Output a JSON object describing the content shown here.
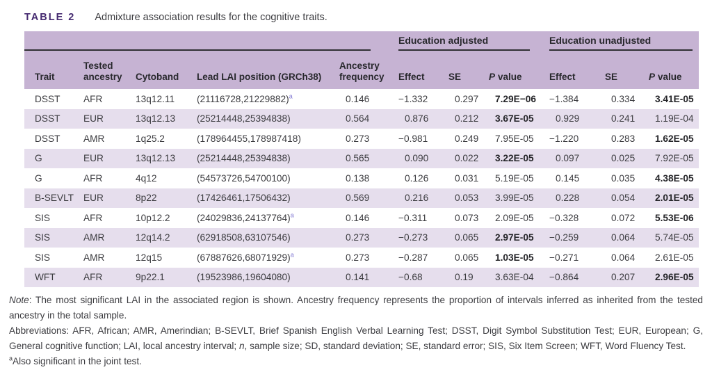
{
  "colors": {
    "header_bg": "#c6b3d3",
    "row_shade_bg": "#e6deed",
    "title_color": "#452a70",
    "text_color": "#3c3c40",
    "header_text_color": "#28282d",
    "rule_color": "#2f2f33",
    "footnote_mark_color": "#7f76d2"
  },
  "title": {
    "label": "TABLE 2",
    "caption": "Admixture association results for the cognitive traits."
  },
  "table": {
    "groups": {
      "adjusted": "Education adjusted",
      "unadjusted": "Education unadjusted"
    },
    "headers": {
      "trait": "Trait",
      "tested": [
        "Tested",
        "ancestry"
      ],
      "cytoband": "Cytoband",
      "position": "Lead LAI position (GRCh38)",
      "frequency": [
        "Ancestry",
        "frequency"
      ],
      "effect": "Effect",
      "se": "SE",
      "p_prefix": "P",
      "p_word": "value"
    },
    "rows": [
      {
        "trait": "DSST",
        "ancestry": "AFR",
        "cytoband": "13q12.11",
        "position": "(21116728,21229882)",
        "footnote": true,
        "frequency": "0.146",
        "adj_effect": "−1.332",
        "adj_se": "0.297",
        "adj_p": "7.29E−06",
        "adj_p_bold": true,
        "unadj_effect": "−1.384",
        "unadj_se": "0.334",
        "unadj_p": "3.41E-05",
        "unadj_p_bold": true
      },
      {
        "trait": "DSST",
        "ancestry": "EUR",
        "cytoband": "13q12.13",
        "position": "(25214448,25394838)",
        "footnote": false,
        "frequency": "0.564",
        "adj_effect": "0.876",
        "adj_se": "0.212",
        "adj_p": "3.67E-05",
        "adj_p_bold": true,
        "unadj_effect": "0.929",
        "unadj_se": "0.241",
        "unadj_p": "1.19E-04",
        "unadj_p_bold": false
      },
      {
        "trait": "DSST",
        "ancestry": "AMR",
        "cytoband": "1q25.2",
        "position": "(178964455,178987418)",
        "footnote": false,
        "frequency": "0.273",
        "adj_effect": "−0.981",
        "adj_se": "0.249",
        "adj_p": "7.95E-05",
        "adj_p_bold": false,
        "unadj_effect": "−1.220",
        "unadj_se": "0.283",
        "unadj_p": "1.62E-05",
        "unadj_p_bold": true
      },
      {
        "trait": "G",
        "ancestry": "EUR",
        "cytoband": "13q12.13",
        "position": "(25214448,25394838)",
        "footnote": false,
        "frequency": "0.565",
        "adj_effect": "0.090",
        "adj_se": "0.022",
        "adj_p": "3.22E-05",
        "adj_p_bold": true,
        "unadj_effect": "0.097",
        "unadj_se": "0.025",
        "unadj_p": "7.92E-05",
        "unadj_p_bold": false
      },
      {
        "trait": "G",
        "ancestry": "AFR",
        "cytoband": "4q12",
        "position": "(54573726,54700100)",
        "footnote": false,
        "frequency": "0.138",
        "adj_effect": "0.126",
        "adj_se": "0.031",
        "adj_p": "5.19E-05",
        "adj_p_bold": false,
        "unadj_effect": "0.145",
        "unadj_se": "0.035",
        "unadj_p": "4.38E-05",
        "unadj_p_bold": true
      },
      {
        "trait": "B-SEVLT",
        "ancestry": "EUR",
        "cytoband": "8p22",
        "position": "(17426461,17506432)",
        "footnote": false,
        "frequency": "0.569",
        "adj_effect": "0.216",
        "adj_se": "0.053",
        "adj_p": "3.99E-05",
        "adj_p_bold": false,
        "unadj_effect": "0.228",
        "unadj_se": "0.054",
        "unadj_p": "2.01E-05",
        "unadj_p_bold": true
      },
      {
        "trait": "SIS",
        "ancestry": "AFR",
        "cytoband": "10p12.2",
        "position": "(24029836,24137764)",
        "footnote": true,
        "frequency": "0.146",
        "adj_effect": "−0.311",
        "adj_se": "0.073",
        "adj_p": "2.09E-05",
        "adj_p_bold": false,
        "unadj_effect": "−0.328",
        "unadj_se": "0.072",
        "unadj_p": "5.53E-06",
        "unadj_p_bold": true
      },
      {
        "trait": "SIS",
        "ancestry": "AMR",
        "cytoband": "12q14.2",
        "position": "(62918508,63107546)",
        "footnote": false,
        "frequency": "0.273",
        "adj_effect": "−0.273",
        "adj_se": "0.065",
        "adj_p": "2.97E-05",
        "adj_p_bold": true,
        "unadj_effect": "−0.259",
        "unadj_se": "0.064",
        "unadj_p": "5.74E-05",
        "unadj_p_bold": false
      },
      {
        "trait": "SIS",
        "ancestry": "AMR",
        "cytoband": "12q15",
        "position": "(67887626,68071929)",
        "footnote": true,
        "frequency": "0.273",
        "adj_effect": "−0.287",
        "adj_se": "0.065",
        "adj_p": "1.03E-05",
        "adj_p_bold": true,
        "unadj_effect": "−0.271",
        "unadj_se": "0.064",
        "unadj_p": "2.61E-05",
        "unadj_p_bold": false
      },
      {
        "trait": "WFT",
        "ancestry": "AFR",
        "cytoband": "9p22.1",
        "position": "(19523986,19604080)",
        "footnote": false,
        "frequency": "0.141",
        "adj_effect": "−0.68",
        "adj_se": "0.19",
        "adj_p": "3.63E-04",
        "adj_p_bold": false,
        "unadj_effect": "−0.864",
        "unadj_se": "0.207",
        "unadj_p": "2.96E-05",
        "unadj_p_bold": true
      }
    ]
  },
  "notes": {
    "note_label": "Note",
    "note_body": ": The most significant LAI in the associated region is shown. Ancestry frequency represents the proportion of intervals inferred as inherited from the tested ancestry in the total sample.",
    "abbr_before_n": "Abbreviations: AFR, African; AMR, Amerindian; B-SEVLT, Brief Spanish English Verbal Learning Test; DSST, Digit Symbol Substitution Test; EUR, European; G, General cognitive function; LAI, local ancestry interval; ",
    "abbr_n": "n",
    "abbr_after_n": ", sample size; SD, standard deviation; SE, standard error; SIS, Six Item Screen; WFT, Word Fluency Test.",
    "footnote_mark": "a",
    "footnote_text": "Also significant in the joint test."
  }
}
